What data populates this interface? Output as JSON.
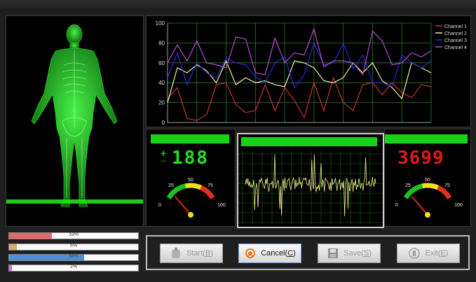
{
  "chart_data": {
    "type": "line",
    "x": [
      0,
      1,
      2,
      3,
      4,
      5,
      6,
      7,
      8,
      9,
      10,
      11,
      12,
      13,
      14,
      15,
      16,
      17,
      18,
      19,
      20,
      21,
      22,
      23,
      24,
      25,
      26,
      27
    ],
    "ylim": [
      0,
      100
    ],
    "yticks": [
      0,
      20,
      40,
      60,
      80,
      100
    ],
    "grid": true,
    "legend_position": "top-right",
    "series": [
      {
        "name": "Channel 1",
        "color": "#c83232",
        "values": [
          24,
          35,
          4,
          2,
          8,
          38,
          40,
          18,
          10,
          12,
          38,
          12,
          35,
          22,
          5,
          40,
          12,
          45,
          20,
          12,
          38,
          40,
          28,
          40,
          30,
          25,
          38,
          36
        ]
      },
      {
        "name": "Channel 2",
        "color": "#f0f0aa",
        "values": [
          20,
          55,
          50,
          58,
          52,
          40,
          62,
          38,
          45,
          40,
          42,
          38,
          36,
          62,
          60,
          55,
          42,
          40,
          45,
          60,
          50,
          60,
          42,
          35,
          24,
          60,
          55,
          50
        ]
      },
      {
        "name": "Channel 3",
        "color": "#2a2ad8",
        "values": [
          45,
          70,
          38,
          60,
          50,
          45,
          65,
          60,
          58,
          46,
          40,
          60,
          66,
          35,
          48,
          80,
          58,
          60,
          80,
          54,
          68,
          40,
          40,
          36,
          68,
          60,
          55,
          62
        ]
      },
      {
        "name": "Channel 4",
        "color": "#b050c8",
        "values": [
          60,
          78,
          62,
          82,
          60,
          58,
          55,
          86,
          84,
          50,
          48,
          85,
          60,
          70,
          68,
          94,
          56,
          62,
          62,
          60,
          48,
          92,
          82,
          58,
          60,
          70,
          66,
          72
        ]
      }
    ]
  },
  "left_meter": {
    "digits": "188",
    "plus": "+",
    "minus": "−",
    "value": 10,
    "ticks": [
      "0",
      "25",
      "50",
      "75",
      "100"
    ]
  },
  "right_meter": {
    "digits": "3699",
    "value": 10,
    "ticks": [
      "0",
      "25",
      "50",
      "75",
      "100"
    ]
  },
  "progress_bars": [
    {
      "label": "33%",
      "value": 0.33,
      "color": "#e06a6a"
    },
    {
      "label": "6%",
      "value": 0.06,
      "color": "#d8b060"
    },
    {
      "label": "58%",
      "value": 0.58,
      "color": "#4a90d8"
    },
    {
      "label": "2%",
      "value": 0.02,
      "color": "#d070d0"
    }
  ],
  "buttons": {
    "start": {
      "text": "Start(",
      "key": "B",
      "tail": ")",
      "icon": "lotion-icon",
      "enabled": false
    },
    "cancel": {
      "text": "Cancel(",
      "key": "C",
      "tail": ")",
      "icon": "cancel-icon",
      "enabled": true
    },
    "save": {
      "text": "Save(",
      "key": "S",
      "tail": ")",
      "icon": "floppy-disk-icon",
      "enabled": false
    },
    "exit": {
      "text": "Exit(",
      "key": "E",
      "tail": ")",
      "icon": "exit-icon",
      "enabled": false
    }
  }
}
